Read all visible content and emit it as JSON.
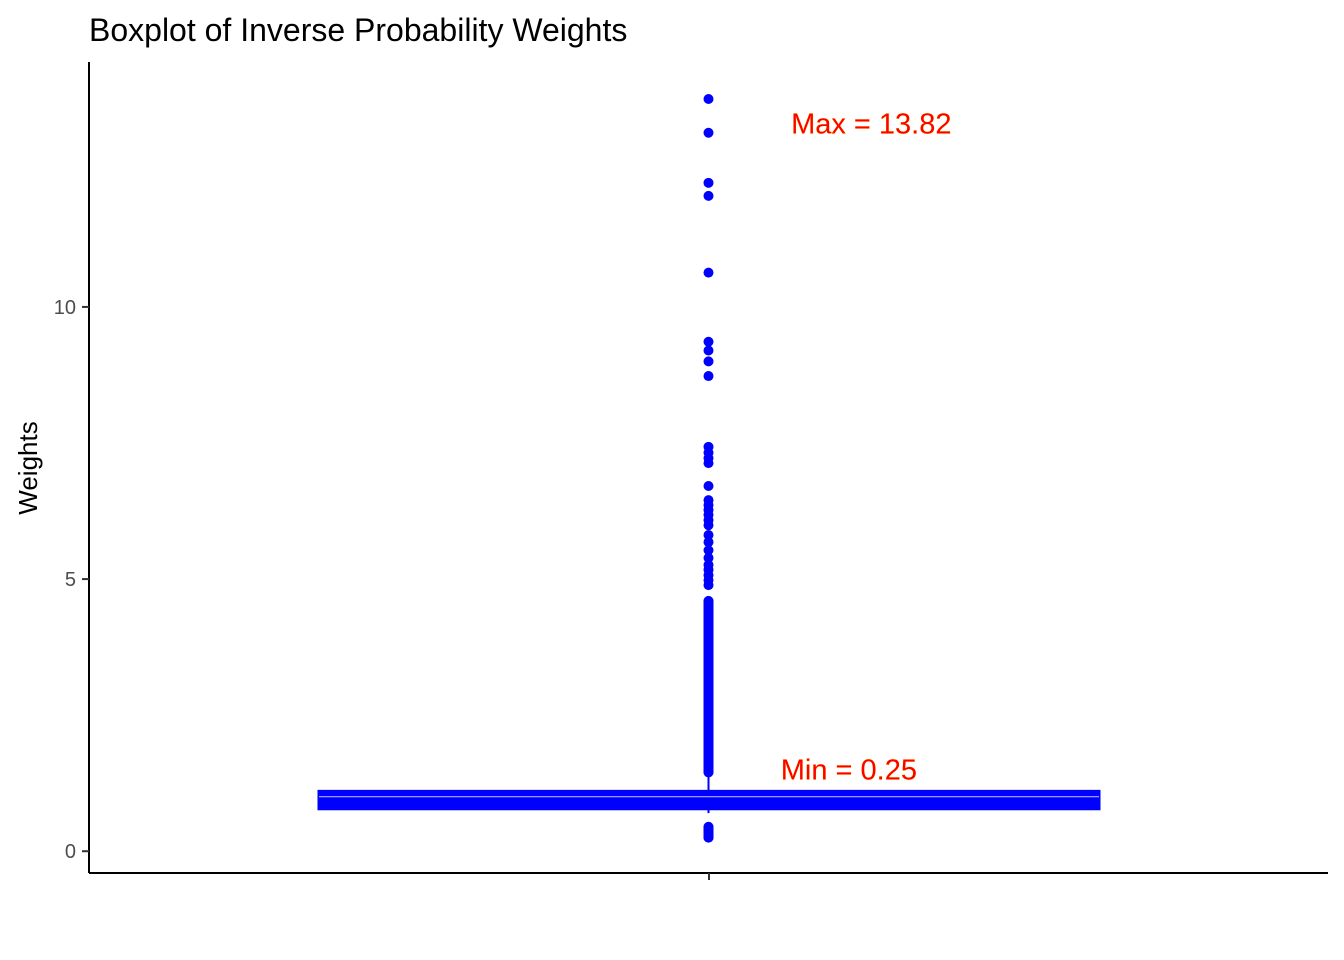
{
  "chart_data": {
    "type": "boxplot",
    "title": "Boxplot of Inverse Probability Weights",
    "xlabel": "",
    "ylabel": "Weights",
    "ylim": [
      -0.4,
      14.5
    ],
    "yticks": [
      0,
      5,
      10
    ],
    "ytick_labels": [
      "0",
      "5",
      "10"
    ],
    "grid": false,
    "box": {
      "q1": 0.78,
      "median": 1.0,
      "q3": 1.1,
      "whisker_low": 0.7,
      "whisker_high": 1.43
    },
    "outliers_high": [
      13.82,
      13.2,
      12.28,
      12.04,
      10.63,
      9.36,
      9.2,
      9.0,
      8.73,
      7.43,
      7.32,
      7.22,
      7.13,
      6.71,
      6.45,
      6.36,
      6.27,
      6.18,
      6.08,
      5.99,
      5.81,
      5.68,
      5.53,
      5.39,
      5.26,
      5.17,
      5.07,
      4.98,
      4.89,
      4.6,
      4.5,
      4.4,
      4.3,
      4.2,
      4.1,
      4.0,
      3.9,
      3.8,
      3.7,
      3.6,
      3.5,
      3.4,
      3.3,
      3.2,
      3.1,
      3.0,
      2.9,
      2.8,
      2.7,
      2.6,
      2.5,
      2.4,
      2.3,
      2.2,
      2.1,
      2.0,
      1.9,
      1.8,
      1.7,
      1.6,
      1.5,
      1.45
    ],
    "outliers_low": [
      0.45,
      0.4,
      0.35,
      0.3,
      0.25
    ],
    "color": "#0000ff",
    "annotations": [
      {
        "text": "Max = 13.82",
        "x": 1.08,
        "y": 13.37,
        "color": "#ff0000"
      },
      {
        "text": "Min = 0.25",
        "x": 1.07,
        "y": 1.5,
        "color": "#ff0000"
      }
    ]
  }
}
